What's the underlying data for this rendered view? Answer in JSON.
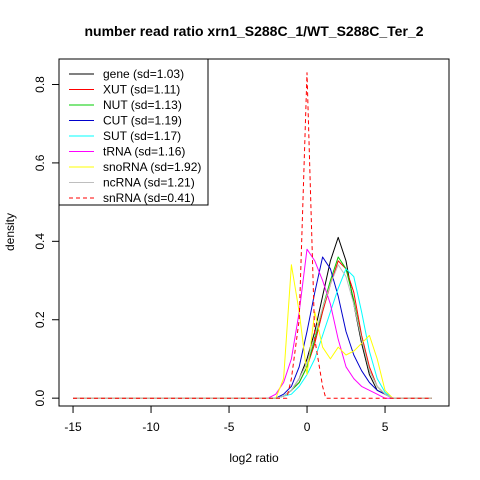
{
  "chart_data": {
    "type": "line",
    "title": "number read ratio xrn1_S288C_1/WT_S288C_Ter_2",
    "xlabel": "log2 ratio",
    "ylabel": "density",
    "xlim": [
      -15.9,
      9.1
    ],
    "ylim": [
      -0.02,
      0.865
    ],
    "x_ticks": [
      -15,
      -10,
      -5,
      0,
      5
    ],
    "x_tick_labels": [
      "-15",
      "-10",
      "-5",
      "0",
      "5"
    ],
    "y_ticks": [
      0.0,
      0.2,
      0.4,
      0.6,
      0.8
    ],
    "y_tick_labels": [
      "0.0",
      "0.2",
      "0.4",
      "0.6",
      "0.8"
    ],
    "grid": false,
    "legend_position": "top-left",
    "series": [
      {
        "name": "gene (sd=1.03)",
        "color": "#000000",
        "dash": "solid",
        "x": [
          -15,
          -2,
          -1.5,
          -1,
          -0.5,
          0,
          0.5,
          1,
          1.5,
          2,
          2.5,
          3,
          3.5,
          4,
          4.5,
          5,
          5.5,
          8
        ],
        "y": [
          0,
          0,
          0.005,
          0.02,
          0.05,
          0.1,
          0.17,
          0.26,
          0.35,
          0.41,
          0.35,
          0.24,
          0.14,
          0.06,
          0.02,
          0.01,
          0,
          0
        ]
      },
      {
        "name": "XUT (sd=1.11)",
        "color": "#ff0000",
        "dash": "solid",
        "x": [
          -15,
          -2,
          -1.5,
          -1,
          -0.5,
          0,
          0.5,
          1,
          1.5,
          2,
          2.5,
          3,
          3.5,
          4,
          4.5,
          5,
          5.5,
          8
        ],
        "y": [
          0,
          0,
          0.005,
          0.02,
          0.04,
          0.08,
          0.14,
          0.22,
          0.29,
          0.35,
          0.33,
          0.27,
          0.16,
          0.08,
          0.03,
          0.01,
          0,
          0
        ]
      },
      {
        "name": "NUT (sd=1.13)",
        "color": "#00cc00",
        "dash": "solid",
        "x": [
          -15,
          -2,
          -1.5,
          -1,
          -0.5,
          0,
          0.5,
          1,
          1.5,
          2,
          2.5,
          3,
          3.5,
          4,
          4.5,
          5,
          5.5,
          8
        ],
        "y": [
          0,
          0,
          0.005,
          0.02,
          0.04,
          0.08,
          0.15,
          0.23,
          0.3,
          0.36,
          0.33,
          0.25,
          0.15,
          0.07,
          0.03,
          0.01,
          0,
          0
        ]
      },
      {
        "name": "CUT (sd=1.19)",
        "color": "#0000cc",
        "dash": "solid",
        "x": [
          -15,
          -2,
          -1.5,
          -1,
          -0.5,
          0,
          0.5,
          1,
          1.5,
          2,
          2.5,
          3,
          3.5,
          4,
          4.5,
          5,
          5.5,
          8
        ],
        "y": [
          0,
          0,
          0.01,
          0.03,
          0.08,
          0.17,
          0.27,
          0.36,
          0.33,
          0.26,
          0.17,
          0.11,
          0.07,
          0.04,
          0.02,
          0.01,
          0,
          0
        ]
      },
      {
        "name": "SUT (sd=1.17)",
        "color": "#00ffff",
        "dash": "solid",
        "x": [
          -15,
          -2,
          -1.5,
          -1,
          -0.5,
          0,
          0.5,
          1,
          1.5,
          2,
          2.5,
          3,
          3.5,
          4,
          4.5,
          5,
          5.5,
          8
        ],
        "y": [
          0,
          0,
          0.005,
          0.01,
          0.03,
          0.06,
          0.1,
          0.16,
          0.22,
          0.28,
          0.33,
          0.31,
          0.22,
          0.12,
          0.05,
          0.015,
          0,
          0
        ]
      },
      {
        "name": "tRNA (sd=1.16)",
        "color": "#ff00ff",
        "dash": "solid",
        "x": [
          -15,
          -2.5,
          -2,
          -1.5,
          -1,
          -0.5,
          0,
          0.5,
          1,
          1.5,
          2,
          2.5,
          3,
          3.5,
          4,
          4.5,
          5,
          8
        ],
        "y": [
          0,
          0,
          0.01,
          0.04,
          0.1,
          0.22,
          0.38,
          0.35,
          0.3,
          0.24,
          0.15,
          0.08,
          0.05,
          0.03,
          0.02,
          0.01,
          0,
          0
        ]
      },
      {
        "name": "snoRNA (sd=1.92)",
        "color": "#ffff00",
        "dash": "solid",
        "x": [
          -15,
          -2,
          -1.5,
          -1,
          -0.5,
          0,
          0.5,
          1,
          1.5,
          2,
          2.5,
          3,
          3.5,
          4,
          4.5,
          5,
          5.5,
          8
        ],
        "y": [
          0,
          0,
          0.05,
          0.34,
          0.22,
          0.06,
          0.22,
          0.13,
          0.1,
          0.13,
          0.11,
          0.12,
          0.14,
          0.16,
          0.1,
          0.02,
          0,
          0
        ]
      },
      {
        "name": "ncRNA (sd=1.21)",
        "color": "#bebebe",
        "dash": "solid",
        "x": [
          -15,
          -2,
          -1.5,
          -1,
          -0.5,
          0,
          0.5,
          1,
          1.5,
          2,
          2.5,
          3,
          3.5,
          4,
          4.5,
          5,
          5.5,
          8
        ],
        "y": [
          0,
          0,
          0.005,
          0.02,
          0.05,
          0.09,
          0.16,
          0.23,
          0.29,
          0.34,
          0.31,
          0.24,
          0.15,
          0.07,
          0.03,
          0.01,
          0,
          0
        ]
      },
      {
        "name": "snRNA (sd=0.41)",
        "color": "#ff0000",
        "dash": "dashed",
        "x": [
          -15,
          -1.3,
          -1,
          -0.5,
          0,
          0.5,
          1,
          1.2,
          8
        ],
        "y": [
          0,
          0,
          0.05,
          0.2,
          0.83,
          0.15,
          0.03,
          0,
          0
        ]
      }
    ]
  }
}
